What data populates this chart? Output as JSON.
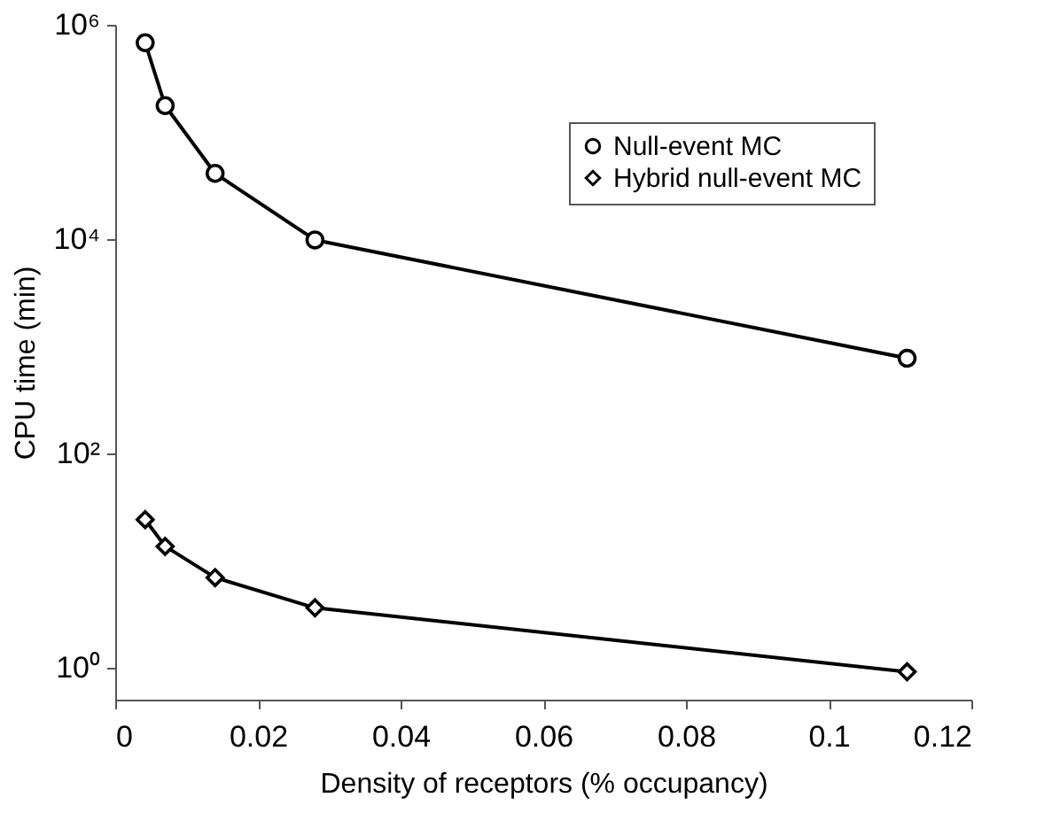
{
  "chart_data": {
    "type": "line",
    "xlabel": "Density of receptors (% occupancy)",
    "ylabel": "CPU time (min)",
    "x": [
      0.0042,
      0.007,
      0.014,
      0.028,
      0.111
    ],
    "series": [
      {
        "name": "Null-event MC",
        "color": "#000000",
        "marker": "circle",
        "values": [
          680000,
          176000,
          41000,
          9800,
          770
        ]
      },
      {
        "name": "Hybrid null-event MC",
        "color": "#000000",
        "marker": "diamond",
        "values": [
          24,
          13.5,
          6.9,
          3.6,
          0.91
        ]
      }
    ],
    "log": "y",
    "xlim": [
      0,
      0.12
    ],
    "xticks": [
      0,
      0.02,
      0.04,
      0.06,
      0.08,
      0.1,
      0.12
    ],
    "ylim": [
      0.5,
      1000000
    ],
    "yticks": [
      {
        "value": 1,
        "label": "10⁰"
      },
      {
        "value": 100,
        "label": "10²"
      },
      {
        "value": 10000,
        "label": "10⁴"
      },
      {
        "value": 1000000,
        "label": "10⁶"
      }
    ],
    "grid": false,
    "legend": "top right",
    "line_style": "solid"
  }
}
